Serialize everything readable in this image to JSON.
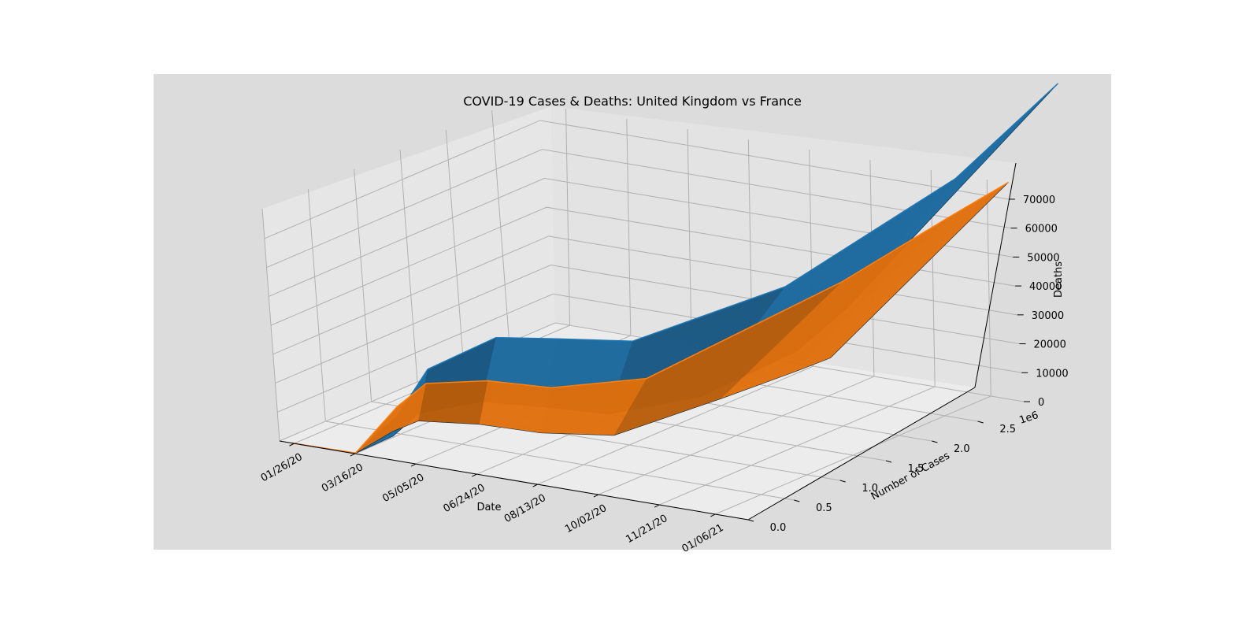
{
  "chart_data": {
    "type": "surface3d",
    "title": "COVID-19 Cases & Deaths: United Kingdom vs France",
    "xlabel": "Date",
    "ylabel": "Number of Cases",
    "zlabel": "Deaths",
    "y_offset_label": "1e6",
    "x_tick_labels": [
      "01/26/20",
      "03/16/20",
      "05/05/20",
      "06/24/20",
      "08/13/20",
      "10/02/20",
      "11/21/20",
      "01/06/21"
    ],
    "y_ticks": [
      0.0,
      0.5,
      1.0,
      1.5,
      2.0,
      2.5
    ],
    "y_tick_labels": [
      "0.0",
      "0.5",
      "1.0",
      "1.5",
      "2.0",
      "2.5"
    ],
    "z_ticks": [
      0,
      10000,
      20000,
      30000,
      40000,
      50000,
      60000,
      70000
    ],
    "z_tick_labels": [
      "0",
      "10000",
      "20000",
      "30000",
      "40000",
      "50000",
      "60000",
      "70000"
    ],
    "grid": true,
    "series": [
      {
        "name": "",
        "color": "#1f77b4",
        "x": [
          "01/31/20",
          "03/16/20",
          "04/15/20",
          "05/05/20",
          "06/24/20",
          "08/13/20",
          "10/02/20",
          "11/21/20",
          "01/06/21",
          "01/26/21"
        ],
        "cases_millions": [
          0.0,
          0.002,
          0.1,
          0.2,
          0.31,
          0.32,
          0.48,
          1.5,
          2.8,
          3.7
        ],
        "deaths": [
          0,
          60,
          14000,
          30000,
          43000,
          46000,
          46500,
          55000,
          78000,
          100000
        ]
      },
      {
        "name": "",
        "color": "#ff7f0e",
        "x": [
          "01/24/20",
          "03/16/20",
          "04/15/20",
          "05/05/20",
          "06/24/20",
          "08/13/20",
          "10/02/20",
          "11/21/20",
          "01/06/21",
          "01/26/21"
        ],
        "cases_millions": [
          0.0,
          0.007,
          0.1,
          0.17,
          0.19,
          0.22,
          0.6,
          2.1,
          2.7,
          3.1
        ],
        "deaths": [
          0,
          150,
          17000,
          25500,
          29700,
          30400,
          32000,
          48500,
          66000,
          74000
        ]
      }
    ]
  }
}
